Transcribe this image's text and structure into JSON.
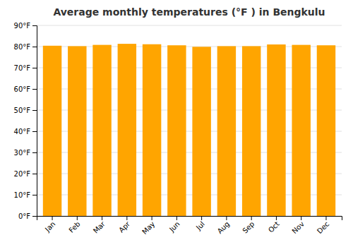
{
  "chart_data": {
    "type": "bar",
    "title": "Average monthly temperatures (°F ) in Bengkulu",
    "categories": [
      "Jan",
      "Feb",
      "Mar",
      "Apr",
      "May",
      "Jun",
      "Jul",
      "Aug",
      "Sep",
      "Oct",
      "Nov",
      "Dec"
    ],
    "values": [
      80.4,
      80.2,
      80.8,
      81.3,
      81.1,
      80.6,
      79.9,
      80.2,
      80.2,
      81.0,
      80.8,
      80.6
    ],
    "color": "#FFA500",
    "ylim": [
      0,
      90
    ],
    "yticks": [
      {
        "value": 0,
        "label": "0°F"
      },
      {
        "value": 10,
        "label": "10°F"
      },
      {
        "value": 20,
        "label": "20°F"
      },
      {
        "value": 30,
        "label": "30°F"
      },
      {
        "value": 40,
        "label": "40°F"
      },
      {
        "value": 50,
        "label": "50°F"
      },
      {
        "value": 60,
        "label": "60°F"
      },
      {
        "value": 70,
        "label": "70°F"
      },
      {
        "value": 80,
        "label": "80°F"
      },
      {
        "value": 90,
        "label": "90°F"
      }
    ],
    "grid": true
  }
}
